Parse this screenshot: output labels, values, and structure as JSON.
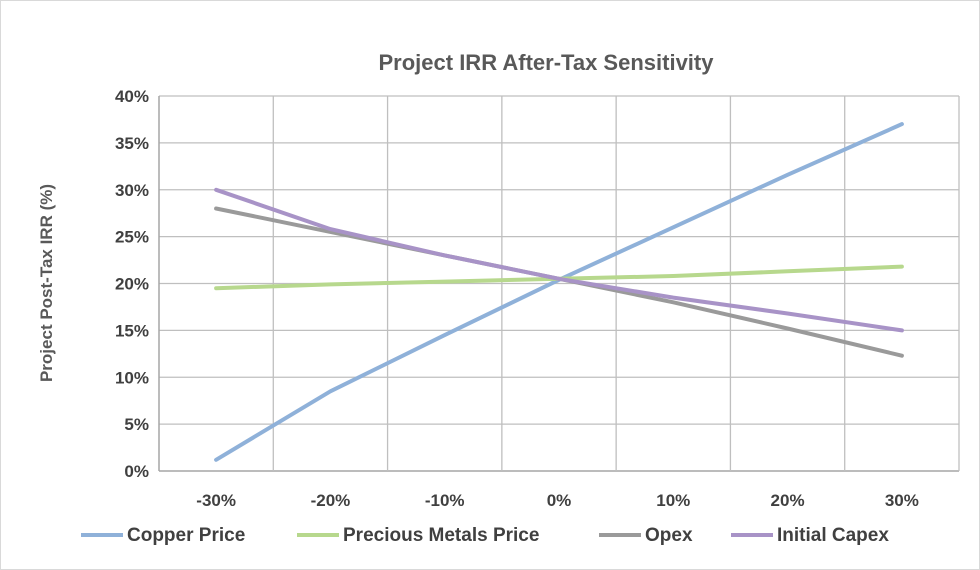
{
  "chart_data": {
    "type": "line",
    "title": "Project IRR After-Tax Sensitivity",
    "xlabel": "",
    "ylabel": "Project Post-Tax IRR (%)",
    "categories": [
      "-30%",
      "-20%",
      "-10%",
      "0%",
      "10%",
      "20%",
      "30%"
    ],
    "y_tick_labels": [
      "0%",
      "5%",
      "10%",
      "15%",
      "20%",
      "25%",
      "30%",
      "35%",
      "40%"
    ],
    "ylim": [
      0,
      40
    ],
    "y_step": 5,
    "grid": true,
    "legend_position": "bottom",
    "series": [
      {
        "name": "Copper Price",
        "color": "#8fb1d9",
        "values": [
          1.2,
          8.5,
          14.5,
          20.4,
          26.0,
          31.6,
          37.0
        ]
      },
      {
        "name": "Precious Metals Price",
        "color": "#b7d88d",
        "values": [
          19.5,
          19.9,
          20.2,
          20.5,
          20.8,
          21.3,
          21.8
        ]
      },
      {
        "name": "Opex",
        "color": "#9a9a9a",
        "values": [
          28.0,
          25.5,
          23.0,
          20.5,
          18.0,
          15.2,
          12.3
        ]
      },
      {
        "name": "Initial Capex",
        "color": "#a893c7",
        "values": [
          30.0,
          25.8,
          23.0,
          20.5,
          18.5,
          16.8,
          15.0
        ]
      }
    ]
  }
}
